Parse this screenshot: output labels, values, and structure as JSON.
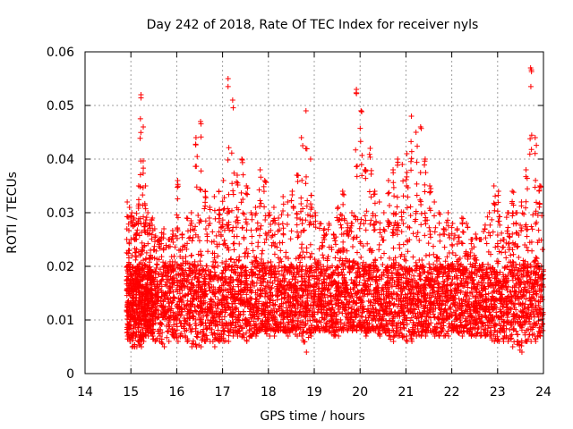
{
  "chart_data": {
    "type": "scatter",
    "title": "Day 242 of 2018, Rate Of TEC Index for receiver nyls",
    "xlabel": "GPS time / hours",
    "ylabel": "ROTI / TECUs",
    "xlim": [
      14,
      24
    ],
    "ylim": [
      0,
      0.06
    ],
    "x_ticks": [
      "14",
      "15",
      "16",
      "17",
      "18",
      "19",
      "20",
      "21",
      "22",
      "23",
      "24"
    ],
    "y_ticks": [
      "0",
      "0.01",
      "0.02",
      "0.03",
      "0.04",
      "0.05",
      "0.06"
    ],
    "grid": true,
    "marker": "plus",
    "color": "#ff0000",
    "series": [
      {
        "values_description_note": "",
        "x": [
          14.9,
          14.95,
          15.0,
          15.05,
          15.1,
          15.15,
          15.2,
          15.25,
          15.3,
          15.35,
          15.4,
          15.45,
          15.5,
          15.6,
          15.7,
          15.8,
          15.9,
          16.0,
          16.1,
          16.2,
          16.3,
          16.4,
          16.5,
          16.6,
          16.7,
          16.8,
          16.9,
          17.0,
          17.1,
          17.2,
          17.3,
          17.4,
          17.5,
          17.6,
          17.7,
          17.8,
          17.9,
          18.0,
          18.1,
          18.2,
          18.3,
          18.4,
          18.5,
          18.6,
          18.7,
          18.8,
          18.9,
          19.0,
          19.1,
          19.2,
          19.3,
          19.4,
          19.5,
          19.6,
          19.7,
          19.8,
          19.9,
          20.0,
          20.1,
          20.2,
          20.3,
          20.4,
          20.5,
          20.6,
          20.7,
          20.8,
          20.9,
          21.0,
          21.1,
          21.2,
          21.3,
          21.4,
          21.5,
          21.6,
          21.7,
          21.8,
          21.9,
          22.0,
          22.1,
          22.2,
          22.3,
          22.4,
          22.5,
          22.6,
          22.7,
          22.8,
          22.9,
          23.0,
          23.1,
          23.2,
          23.3,
          23.4,
          23.5,
          23.6,
          23.7,
          23.8,
          23.9,
          24.0
        ],
        "upper": [
          0.032,
          0.031,
          0.03,
          0.029,
          0.028,
          0.035,
          0.052,
          0.046,
          0.035,
          0.03,
          0.028,
          0.029,
          0.027,
          0.025,
          0.027,
          0.025,
          0.026,
          0.036,
          0.026,
          0.029,
          0.03,
          0.044,
          0.047,
          0.034,
          0.031,
          0.033,
          0.034,
          0.036,
          0.055,
          0.051,
          0.037,
          0.04,
          0.035,
          0.03,
          0.031,
          0.038,
          0.036,
          0.03,
          0.031,
          0.029,
          0.033,
          0.032,
          0.034,
          0.037,
          0.044,
          0.049,
          0.04,
          0.03,
          0.028,
          0.027,
          0.028,
          0.026,
          0.031,
          0.034,
          0.028,
          0.03,
          0.053,
          0.049,
          0.038,
          0.042,
          0.034,
          0.032,
          0.03,
          0.036,
          0.038,
          0.04,
          0.039,
          0.041,
          0.048,
          0.045,
          0.046,
          0.04,
          0.035,
          0.032,
          0.03,
          0.027,
          0.03,
          0.028,
          0.027,
          0.029,
          0.028,
          0.025,
          0.026,
          0.025,
          0.027,
          0.03,
          0.035,
          0.034,
          0.025,
          0.03,
          0.034,
          0.03,
          0.032,
          0.038,
          0.057,
          0.044,
          0.035,
          0.03
        ],
        "lower": [
          0.007,
          0.006,
          0.005,
          0.005,
          0.005,
          0.006,
          0.005,
          0.006,
          0.007,
          0.007,
          0.008,
          0.007,
          0.006,
          0.006,
          0.005,
          0.006,
          0.007,
          0.006,
          0.007,
          0.006,
          0.005,
          0.005,
          0.005,
          0.006,
          0.006,
          0.005,
          0.006,
          0.006,
          0.006,
          0.007,
          0.007,
          0.007,
          0.006,
          0.007,
          0.007,
          0.008,
          0.008,
          0.007,
          0.007,
          0.008,
          0.008,
          0.007,
          0.008,
          0.007,
          0.007,
          0.004,
          0.007,
          0.008,
          0.008,
          0.008,
          0.008,
          0.007,
          0.007,
          0.008,
          0.008,
          0.008,
          0.008,
          0.008,
          0.007,
          0.008,
          0.008,
          0.007,
          0.008,
          0.007,
          0.006,
          0.007,
          0.007,
          0.006,
          0.006,
          0.007,
          0.007,
          0.007,
          0.008,
          0.007,
          0.007,
          0.007,
          0.007,
          0.008,
          0.008,
          0.007,
          0.008,
          0.007,
          0.007,
          0.007,
          0.007,
          0.007,
          0.006,
          0.006,
          0.006,
          0.006,
          0.005,
          0.006,
          0.004,
          0.006,
          0.006,
          0.006,
          0.007,
          0.007
        ],
        "core_low": 0.009,
        "core_high": 0.02
      }
    ]
  }
}
